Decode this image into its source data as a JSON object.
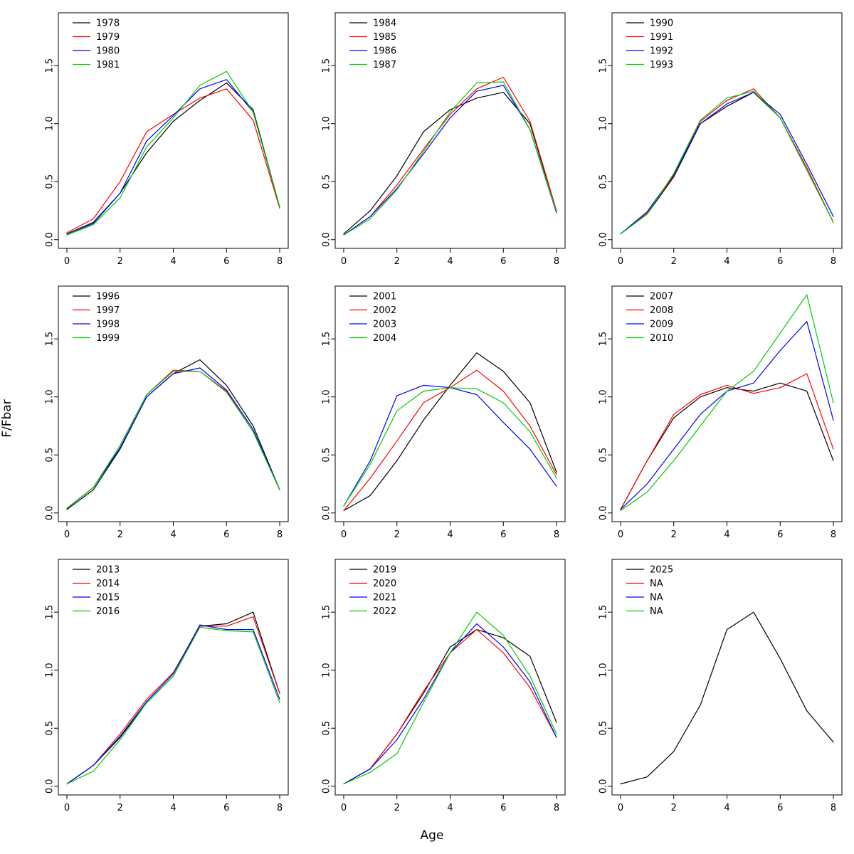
{
  "figure": {
    "xlabel": "Age",
    "ylabel": "F/Fbar"
  },
  "axes": {
    "x_ticks": [
      "0",
      "2",
      "4",
      "6",
      "8"
    ],
    "y_ticks": [
      "0.0",
      "0.5",
      "1.0",
      "1.5"
    ],
    "xlim": [
      -0.32,
      8.32
    ],
    "ylim": [
      -0.075,
      1.955
    ],
    "grid": false,
    "legend_position": "top-left"
  },
  "palette": {
    "black": "#000000",
    "red": "#FF0000",
    "blue": "#0000FF",
    "green": "#00CC00"
  },
  "chart_data": [
    {
      "type": "line",
      "x": [
        0,
        1,
        2,
        3,
        4,
        5,
        6,
        7,
        8
      ],
      "series": [
        {
          "name": "1978",
          "color": "black",
          "values": [
            0.05,
            0.15,
            0.4,
            0.75,
            1.02,
            1.2,
            1.35,
            1.12,
            0.28
          ]
        },
        {
          "name": "1979",
          "color": "red",
          "values": [
            0.06,
            0.18,
            0.5,
            0.93,
            1.08,
            1.22,
            1.3,
            1.03,
            0.27
          ]
        },
        {
          "name": "1980",
          "color": "blue",
          "values": [
            0.04,
            0.14,
            0.4,
            0.85,
            1.07,
            1.3,
            1.38,
            1.1,
            0.28
          ]
        },
        {
          "name": "1981",
          "color": "green",
          "values": [
            0.04,
            0.13,
            0.36,
            0.8,
            1.05,
            1.33,
            1.45,
            1.1,
            0.28
          ]
        }
      ]
    },
    {
      "type": "line",
      "x": [
        0,
        1,
        2,
        3,
        4,
        5,
        6,
        7,
        8
      ],
      "series": [
        {
          "name": "1984",
          "color": "black",
          "values": [
            0.05,
            0.25,
            0.55,
            0.93,
            1.12,
            1.22,
            1.27,
            1.0,
            0.24
          ]
        },
        {
          "name": "1985",
          "color": "red",
          "values": [
            0.04,
            0.2,
            0.47,
            0.78,
            1.08,
            1.3,
            1.4,
            1.02,
            0.25
          ]
        },
        {
          "name": "1986",
          "color": "blue",
          "values": [
            0.04,
            0.2,
            0.44,
            0.74,
            1.05,
            1.28,
            1.33,
            0.95,
            0.23
          ]
        },
        {
          "name": "1987",
          "color": "green",
          "values": [
            0.04,
            0.18,
            0.43,
            0.76,
            1.1,
            1.35,
            1.36,
            0.95,
            0.24
          ]
        }
      ]
    },
    {
      "type": "line",
      "x": [
        0,
        1,
        2,
        3,
        4,
        5,
        6,
        7,
        8
      ],
      "series": [
        {
          "name": "1990",
          "color": "black",
          "values": [
            0.05,
            0.22,
            0.54,
            1.0,
            1.15,
            1.27,
            1.05,
            0.6,
            0.15
          ]
        },
        {
          "name": "1991",
          "color": "red",
          "values": [
            0.05,
            0.23,
            0.55,
            1.02,
            1.2,
            1.3,
            1.05,
            0.62,
            0.15
          ]
        },
        {
          "name": "1992",
          "color": "blue",
          "values": [
            0.05,
            0.24,
            0.56,
            1.0,
            1.17,
            1.27,
            1.08,
            0.65,
            0.2
          ]
        },
        {
          "name": "1993",
          "color": "green",
          "values": [
            0.05,
            0.22,
            0.57,
            1.03,
            1.22,
            1.28,
            1.05,
            0.6,
            0.15
          ]
        }
      ]
    },
    {
      "type": "line",
      "x": [
        0,
        1,
        2,
        3,
        4,
        5,
        6,
        7,
        8
      ],
      "series": [
        {
          "name": "1996",
          "color": "black",
          "values": [
            0.03,
            0.2,
            0.55,
            1.0,
            1.2,
            1.32,
            1.1,
            0.75,
            0.2
          ]
        },
        {
          "name": "1997",
          "color": "red",
          "values": [
            0.04,
            0.22,
            0.58,
            1.02,
            1.23,
            1.22,
            1.05,
            0.7,
            0.2
          ]
        },
        {
          "name": "1998",
          "color": "blue",
          "values": [
            0.04,
            0.22,
            0.56,
            1.0,
            1.2,
            1.25,
            1.06,
            0.72,
            0.2
          ]
        },
        {
          "name": "1999",
          "color": "green",
          "values": [
            0.04,
            0.22,
            0.58,
            1.02,
            1.22,
            1.22,
            1.04,
            0.7,
            0.2
          ]
        }
      ]
    },
    {
      "type": "line",
      "x": [
        0,
        1,
        2,
        3,
        4,
        5,
        6,
        7,
        8
      ],
      "series": [
        {
          "name": "2001",
          "color": "black",
          "values": [
            0.02,
            0.15,
            0.45,
            0.8,
            1.1,
            1.38,
            1.22,
            0.95,
            0.35
          ]
        },
        {
          "name": "2002",
          "color": "red",
          "values": [
            0.02,
            0.3,
            0.62,
            0.95,
            1.08,
            1.23,
            1.05,
            0.75,
            0.33
          ]
        },
        {
          "name": "2003",
          "color": "blue",
          "values": [
            0.06,
            0.45,
            1.01,
            1.1,
            1.08,
            1.02,
            0.78,
            0.55,
            0.23
          ]
        },
        {
          "name": "2004",
          "color": "green",
          "values": [
            0.06,
            0.42,
            0.88,
            1.05,
            1.08,
            1.07,
            0.95,
            0.7,
            0.3
          ]
        }
      ]
    },
    {
      "type": "line",
      "x": [
        0,
        1,
        2,
        3,
        4,
        5,
        6,
        7,
        8
      ],
      "series": [
        {
          "name": "2007",
          "color": "black",
          "values": [
            0.03,
            0.45,
            0.82,
            1.0,
            1.08,
            1.05,
            1.12,
            1.05,
            0.45
          ]
        },
        {
          "name": "2008",
          "color": "red",
          "values": [
            0.03,
            0.45,
            0.85,
            1.02,
            1.1,
            1.03,
            1.08,
            1.2,
            0.55
          ]
        },
        {
          "name": "2009",
          "color": "blue",
          "values": [
            0.03,
            0.25,
            0.55,
            0.85,
            1.05,
            1.12,
            1.4,
            1.65,
            0.8
          ]
        },
        {
          "name": "2010",
          "color": "green",
          "values": [
            0.02,
            0.18,
            0.45,
            0.75,
            1.05,
            1.22,
            1.55,
            1.88,
            0.95
          ]
        }
      ]
    },
    {
      "type": "line",
      "x": [
        0,
        1,
        2,
        3,
        4,
        5,
        6,
        7,
        8
      ],
      "series": [
        {
          "name": "2013",
          "color": "black",
          "values": [
            0.02,
            0.18,
            0.42,
            0.72,
            0.95,
            1.38,
            1.4,
            1.5,
            0.8
          ]
        },
        {
          "name": "2014",
          "color": "red",
          "values": [
            0.02,
            0.18,
            0.45,
            0.75,
            0.98,
            1.38,
            1.38,
            1.46,
            0.8
          ]
        },
        {
          "name": "2015",
          "color": "blue",
          "values": [
            0.02,
            0.18,
            0.43,
            0.73,
            0.97,
            1.39,
            1.35,
            1.35,
            0.75
          ]
        },
        {
          "name": "2016",
          "color": "green",
          "values": [
            0.02,
            0.13,
            0.4,
            0.72,
            0.95,
            1.37,
            1.34,
            1.33,
            0.72
          ]
        }
      ]
    },
    {
      "type": "line",
      "x": [
        0,
        1,
        2,
        3,
        4,
        5,
        6,
        7,
        8
      ],
      "series": [
        {
          "name": "2019",
          "color": "black",
          "values": [
            0.02,
            0.15,
            0.45,
            0.8,
            1.2,
            1.35,
            1.28,
            1.12,
            0.55
          ]
        },
        {
          "name": "2020",
          "color": "red",
          "values": [
            0.02,
            0.15,
            0.45,
            0.82,
            1.15,
            1.35,
            1.15,
            0.85,
            0.42
          ]
        },
        {
          "name": "2021",
          "color": "blue",
          "values": [
            0.02,
            0.15,
            0.4,
            0.75,
            1.15,
            1.4,
            1.2,
            0.9,
            0.42
          ]
        },
        {
          "name": "2022",
          "color": "green",
          "values": [
            0.02,
            0.12,
            0.28,
            0.72,
            1.15,
            1.5,
            1.3,
            0.95,
            0.45
          ]
        }
      ]
    },
    {
      "type": "line",
      "x": [
        0,
        1,
        2,
        3,
        4,
        5,
        6,
        7,
        8
      ],
      "series": [
        {
          "name": "2025",
          "color": "black",
          "values": [
            0.02,
            0.08,
            0.3,
            0.7,
            1.35,
            1.5,
            1.1,
            0.65,
            0.38
          ]
        },
        {
          "name": "NA",
          "color": "red",
          "values": null
        },
        {
          "name": "NA",
          "color": "blue",
          "values": null
        },
        {
          "name": "NA",
          "color": "green",
          "values": null
        }
      ]
    }
  ]
}
